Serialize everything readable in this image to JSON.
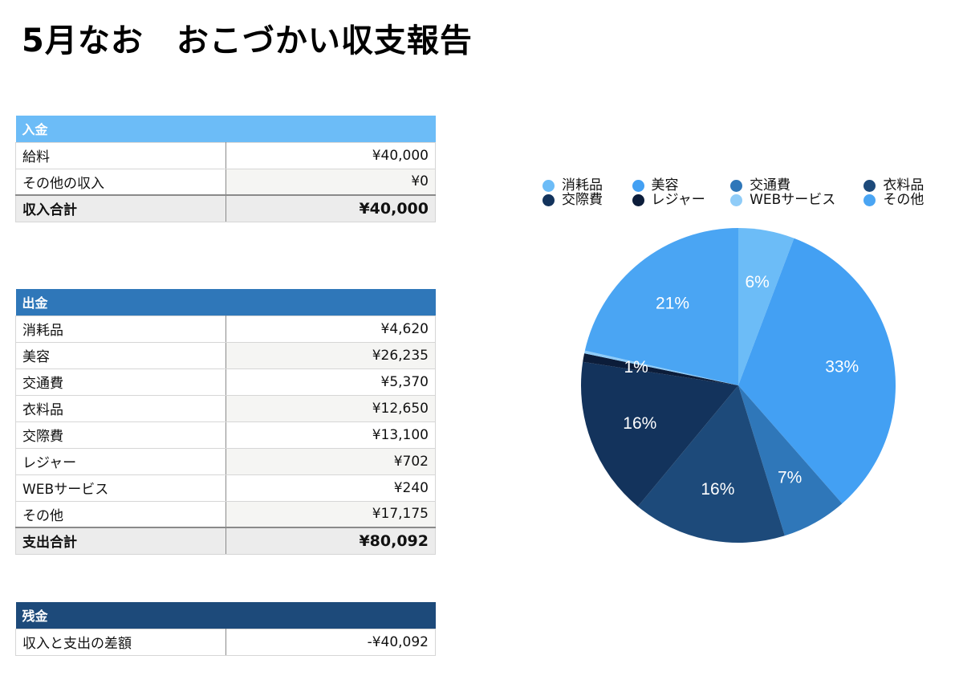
{
  "title": "5月なお　おこづかい収支報告",
  "income": {
    "header": "入金",
    "header_color": "#6cbcf7",
    "rows": [
      {
        "label": "給料",
        "amount": "¥40,000"
      },
      {
        "label": "その他の収入",
        "amount": "¥0"
      }
    ],
    "total_label": "収入合計",
    "total_amount": "¥40,000"
  },
  "expense": {
    "header": "出金",
    "header_color": "#2f77b9",
    "rows": [
      {
        "label": "消耗品",
        "amount": "¥4,620"
      },
      {
        "label": "美容",
        "amount": "¥26,235"
      },
      {
        "label": "交通費",
        "amount": "¥5,370"
      },
      {
        "label": "衣料品",
        "amount": "¥12,650"
      },
      {
        "label": "交際費",
        "amount": "¥13,100"
      },
      {
        "label": "レジャー",
        "amount": "¥702"
      },
      {
        "label": "WEBサービス",
        "amount": "¥240"
      },
      {
        "label": "その他",
        "amount": "¥17,175"
      }
    ],
    "total_label": "支出合計",
    "total_amount": "¥80,092"
  },
  "balance": {
    "header": "残金",
    "header_color": "#1d4a7a",
    "rows": [
      {
        "label": "収入と支出の差額",
        "amount": "-¥40,092"
      }
    ]
  },
  "chart_data": {
    "type": "pie",
    "legend_position": "top",
    "slices": [
      {
        "name": "消耗品",
        "value": 4620,
        "label": "6%",
        "color": "#6cbcf7"
      },
      {
        "name": "美容",
        "value": 26235,
        "label": "33%",
        "color": "#43a0f3"
      },
      {
        "name": "交通費",
        "value": 5370,
        "label": "7%",
        "color": "#2f77b9"
      },
      {
        "name": "衣料品",
        "value": 12650,
        "label": "16%",
        "color": "#1d4a7a"
      },
      {
        "name": "交際費",
        "value": 13100,
        "label": "16%",
        "color": "#13335c"
      },
      {
        "name": "レジャー",
        "value": 702,
        "label": "1%",
        "color": "#0c1d3a"
      },
      {
        "name": "WEBサービス",
        "value": 240,
        "label": "",
        "color": "#8fccf8"
      },
      {
        "name": "その他",
        "value": 17175,
        "label": "21%",
        "color": "#4aa5f3"
      }
    ]
  }
}
